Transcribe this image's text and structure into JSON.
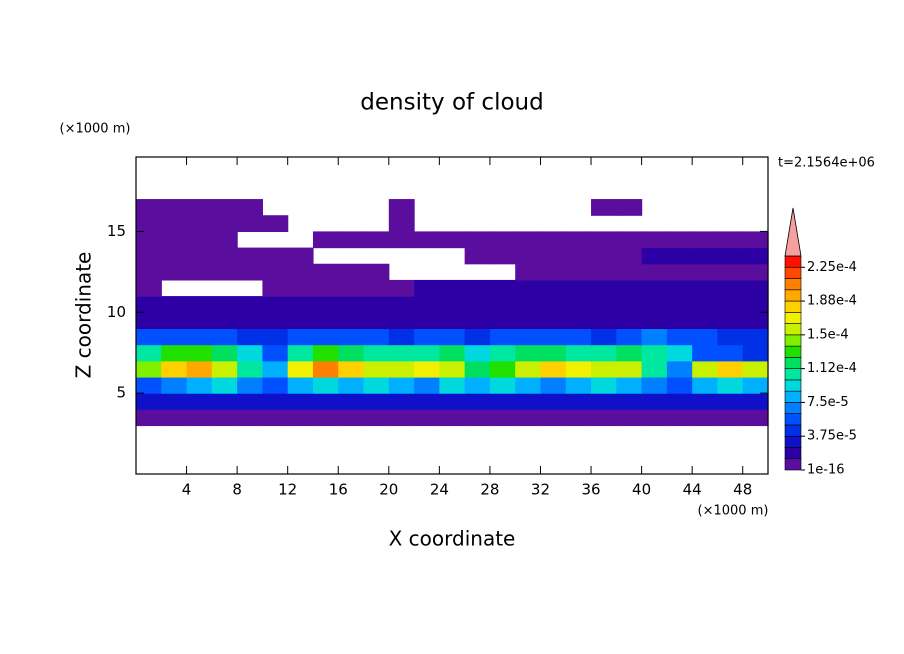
{
  "chart_data": {
    "type": "contour",
    "title": "density of cloud",
    "x_label": "X coordinate",
    "y_label": "Z coordinate",
    "x_unit": "(×1000 m)",
    "y_unit": "(×1000 m)",
    "time_label": "t=2.1564e+06",
    "xlim": [
      0,
      50
    ],
    "ylim": [
      0,
      19.6
    ],
    "xticks": [
      4,
      8,
      12,
      16,
      20,
      24,
      28,
      32,
      36,
      40,
      44,
      48
    ],
    "yticks": [
      5,
      10,
      15
    ],
    "x": [
      1,
      3,
      5,
      7,
      9,
      11,
      13,
      15,
      17,
      19,
      21,
      23,
      25,
      27,
      29,
      31,
      33,
      35,
      37,
      39,
      41,
      43,
      45,
      47,
      49
    ],
    "y": [
      0.5,
      1.5,
      2.5,
      3.5,
      4.5,
      5.5,
      6.5,
      7.5,
      8.5,
      9.5,
      10.5,
      11.5,
      12.5,
      13.5,
      14.5,
      15.5,
      16.5,
      17.5,
      18.5,
      19.5
    ],
    "z": [
      [
        null,
        null,
        null,
        null,
        null,
        null,
        null,
        null,
        null,
        null,
        null,
        null,
        null,
        null,
        null,
        null,
        null,
        null,
        null,
        null,
        null,
        null,
        null,
        null,
        null
      ],
      [
        null,
        null,
        null,
        null,
        null,
        null,
        null,
        null,
        null,
        null,
        null,
        null,
        null,
        null,
        null,
        null,
        null,
        null,
        null,
        null,
        null,
        null,
        null,
        null,
        null
      ],
      [
        null,
        null,
        null,
        null,
        null,
        null,
        null,
        null,
        null,
        null,
        null,
        null,
        null,
        null,
        null,
        null,
        null,
        null,
        null,
        null,
        null,
        null,
        null,
        null,
        null
      ],
      [
        5e-06,
        5e-06,
        5e-06,
        5e-06,
        5e-06,
        5e-06,
        5e-06,
        5e-06,
        5e-06,
        5e-06,
        5e-06,
        5e-06,
        5e-06,
        5e-06,
        5e-06,
        5e-06,
        5e-06,
        5e-06,
        5e-06,
        5e-06,
        5e-06,
        5e-06,
        5e-06,
        5e-06,
        5e-06
      ],
      [
        3e-05,
        3e-05,
        3e-05,
        3e-05,
        3e-05,
        3e-05,
        3e-05,
        3e-05,
        3e-05,
        3e-05,
        3e-05,
        3e-05,
        3e-05,
        3e-05,
        3e-05,
        3e-05,
        3e-05,
        3e-05,
        3e-05,
        3e-05,
        3e-05,
        3e-05,
        3e-05,
        3e-05,
        3e-05
      ],
      [
        6e-05,
        7e-05,
        8e-05,
        9e-05,
        7e-05,
        6e-05,
        8e-05,
        9e-05,
        8e-05,
        9e-05,
        8e-05,
        7e-05,
        9e-05,
        8e-05,
        9e-05,
        8e-05,
        7e-05,
        8e-05,
        9e-05,
        8e-05,
        7e-05,
        6e-05,
        8e-05,
        9e-05,
        8e-05
      ],
      [
        0.00014,
        0.00018,
        0.00019,
        0.00016,
        0.00011,
        8e-05,
        0.00017,
        0.0002,
        0.00018,
        0.00016,
        0.00015,
        0.00017,
        0.00016,
        0.00012,
        0.00013,
        0.00016,
        0.00018,
        0.00017,
        0.00016,
        0.00015,
        0.00011,
        7e-05,
        0.00016,
        0.00018,
        0.00015
      ],
      [
        0.00011,
        0.00013,
        0.00013,
        0.00012,
        9e-05,
        6e-05,
        0.00011,
        0.00013,
        0.00012,
        0.00011,
        0.0001,
        0.00011,
        0.00012,
        9e-05,
        0.0001,
        0.00012,
        0.00012,
        0.00011,
        0.00011,
        0.00012,
        0.0001,
        9e-05,
        6e-05,
        5e-05,
        4e-05
      ],
      [
        5e-05,
        6e-05,
        5e-05,
        5e-05,
        4e-05,
        4e-05,
        5e-05,
        6e-05,
        5e-05,
        5e-05,
        4e-05,
        5e-05,
        5e-05,
        4e-05,
        5e-05,
        5e-05,
        5e-05,
        5e-05,
        4e-05,
        6e-05,
        7e-05,
        6e-05,
        5e-05,
        4e-05,
        4e-05
      ],
      [
        2e-05,
        2e-05,
        2e-05,
        2e-05,
        2e-05,
        2e-05,
        2e-05,
        2e-05,
        2e-05,
        2e-05,
        2e-05,
        2e-05,
        2e-05,
        2e-05,
        2e-05,
        2e-05,
        2e-05,
        2e-05,
        2e-05,
        2e-05,
        2e-05,
        2e-05,
        2e-05,
        2e-05,
        2e-05
      ],
      [
        1.3e-05,
        1.3e-05,
        1.3e-05,
        1.3e-05,
        1.3e-05,
        1.3e-05,
        1.3e-05,
        1.3e-05,
        1.3e-05,
        1.3e-05,
        1.3e-05,
        1.3e-05,
        1.3e-05,
        1.3e-05,
        1.3e-05,
        1.3e-05,
        1.3e-05,
        1.3e-05,
        1.3e-05,
        1.3e-05,
        1.3e-05,
        1.3e-05,
        1.3e-05,
        1.3e-05,
        1.3e-05
      ],
      [
        5e-06,
        null,
        null,
        null,
        null,
        5e-06,
        5e-06,
        5e-06,
        5e-06,
        5e-06,
        5e-06,
        1.3e-05,
        1.3e-05,
        1.3e-05,
        1.3e-05,
        1.3e-05,
        1.3e-05,
        1.3e-05,
        1.3e-05,
        1.3e-05,
        1.3e-05,
        1.3e-05,
        1.3e-05,
        1.3e-05,
        1.3e-05
      ],
      [
        5e-06,
        5e-06,
        5e-06,
        5e-06,
        5e-06,
        5e-06,
        5e-06,
        5e-06,
        5e-06,
        5e-06,
        null,
        null,
        null,
        null,
        null,
        5e-06,
        5e-06,
        5e-06,
        5e-06,
        5e-06,
        5e-06,
        5e-06,
        5e-06,
        5e-06,
        5e-06
      ],
      [
        5e-06,
        5e-06,
        5e-06,
        5e-06,
        5e-06,
        5e-06,
        5e-06,
        null,
        null,
        null,
        null,
        null,
        null,
        5e-06,
        5e-06,
        5e-06,
        5e-06,
        5e-06,
        5e-06,
        5e-06,
        1.3e-05,
        1.3e-05,
        1.3e-05,
        1.3e-05,
        1.3e-05
      ],
      [
        5e-06,
        5e-06,
        5e-06,
        5e-06,
        null,
        null,
        null,
        5e-06,
        5e-06,
        5e-06,
        5e-06,
        5e-06,
        5e-06,
        5e-06,
        5e-06,
        5e-06,
        5e-06,
        5e-06,
        5e-06,
        5e-06,
        5e-06,
        5e-06,
        5e-06,
        5e-06,
        5e-06
      ],
      [
        5e-06,
        5e-06,
        5e-06,
        5e-06,
        5e-06,
        5e-06,
        null,
        null,
        null,
        null,
        5e-06,
        null,
        null,
        null,
        null,
        null,
        null,
        null,
        null,
        null,
        null,
        null,
        null,
        null,
        null
      ],
      [
        5e-06,
        5e-06,
        5e-06,
        5e-06,
        5e-06,
        null,
        null,
        null,
        null,
        null,
        5e-06,
        null,
        null,
        null,
        null,
        null,
        null,
        null,
        5e-06,
        5e-06,
        null,
        null,
        null,
        null,
        null
      ],
      [
        null,
        null,
        null,
        null,
        null,
        null,
        null,
        null,
        null,
        null,
        null,
        null,
        null,
        null,
        null,
        null,
        null,
        null,
        null,
        null,
        null,
        null,
        null,
        null,
        null
      ],
      [
        null,
        null,
        null,
        null,
        null,
        null,
        null,
        null,
        null,
        null,
        null,
        null,
        null,
        null,
        null,
        null,
        null,
        null,
        null,
        null,
        null,
        null,
        null,
        null,
        null
      ],
      [
        null,
        null,
        null,
        null,
        null,
        null,
        null,
        null,
        null,
        null,
        null,
        null,
        null,
        null,
        null,
        null,
        null,
        null,
        null,
        null,
        null,
        null,
        null,
        null,
        null
      ]
    ],
    "levels": [
      1e-16,
      1.25e-05,
      2.5e-05,
      3.75e-05,
      5e-05,
      6.25e-05,
      7.5e-05,
      8.75e-05,
      0.0001,
      0.0001125,
      0.000125,
      0.0001375,
      0.00015,
      0.0001625,
      0.000175,
      0.0001875,
      0.0002,
      0.0002125,
      0.000225
    ],
    "colors": [
      "#5b0e9e",
      "#2d00a6",
      "#1010c8",
      "#0030e6",
      "#0050ff",
      "#0080ff",
      "#00b0ff",
      "#00d8e0",
      "#00e8a0",
      "#00e060",
      "#20e000",
      "#80f000",
      "#c8f000",
      "#f0f000",
      "#ffd000",
      "#ffa800",
      "#ff8000",
      "#ff4800",
      "#ff1000"
    ],
    "over_color": "#f4a0a0",
    "cbar_lim": [
      1e-16,
      0.0002375
    ],
    "cbar_ticks": [
      {
        "value": 1e-16,
        "label": "1e-16"
      },
      {
        "value": 3.75e-05,
        "label": "3.75e-5"
      },
      {
        "value": 7.5e-05,
        "label": "7.5e-5"
      },
      {
        "value": 0.0001125,
        "label": "1.12e-4"
      },
      {
        "value": 0.00015,
        "label": "1.5e-4"
      },
      {
        "value": 0.0001875,
        "label": "1.88e-4"
      },
      {
        "value": 0.000225,
        "label": "2.25e-4"
      }
    ]
  }
}
